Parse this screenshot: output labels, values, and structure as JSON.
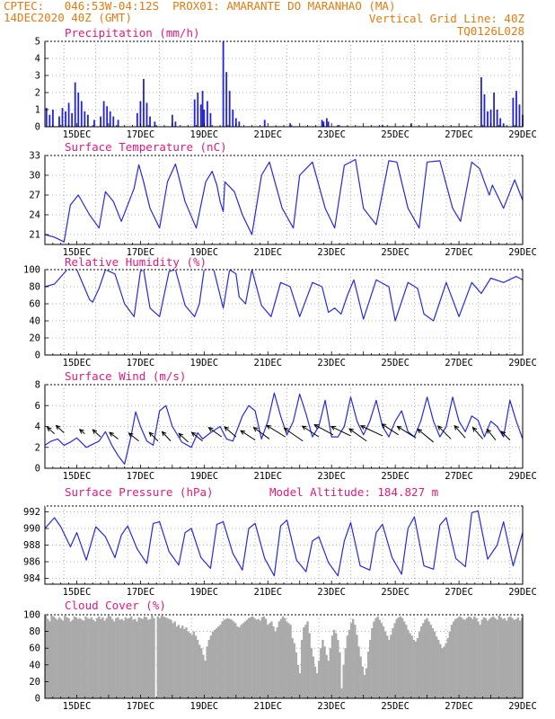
{
  "header": {
    "line1": "CPTEC:   046:53W-04:12S  PROX01: AMARANTE DO MARANHAO (MA)",
    "date": "14DEC2020 40Z (GMT)",
    "grid_note": "Vertical Grid Line: 40Z",
    "code": "TQ0126L028"
  },
  "x_day_labels": [
    "15DEC",
    "17DEC",
    "19DEC",
    "21DEC",
    "23DEC",
    "25DEC",
    "27DEC",
    "29DEC"
  ],
  "chart_data": [
    {
      "type": "bar",
      "title": "Precipitation (mm/h)",
      "ylim": [
        0,
        5
      ],
      "yticks": [
        "0",
        "1",
        "2",
        "3",
        "4",
        "5"
      ],
      "x_day_start": 14.0,
      "x_day_end": 29.0,
      "bars": [
        [
          14.05,
          1.1
        ],
        [
          14.15,
          0.7
        ],
        [
          14.25,
          1.0
        ],
        [
          14.45,
          0.6
        ],
        [
          14.55,
          1.1
        ],
        [
          14.65,
          0.9
        ],
        [
          14.75,
          1.4
        ],
        [
          14.85,
          0.8
        ],
        [
          14.95,
          2.6
        ],
        [
          15.05,
          2.0
        ],
        [
          15.15,
          1.5
        ],
        [
          15.25,
          0.9
        ],
        [
          15.35,
          0.7
        ],
        [
          15.55,
          0.4
        ],
        [
          15.75,
          0.6
        ],
        [
          15.85,
          1.5
        ],
        [
          15.95,
          1.2
        ],
        [
          16.05,
          0.9
        ],
        [
          16.15,
          0.6
        ],
        [
          16.3,
          0.4
        ],
        [
          16.9,
          0.8
        ],
        [
          17.0,
          1.5
        ],
        [
          17.1,
          2.8
        ],
        [
          17.2,
          1.4
        ],
        [
          17.3,
          0.6
        ],
        [
          17.45,
          0.3
        ],
        [
          18.0,
          0.7
        ],
        [
          18.1,
          0.3
        ],
        [
          18.7,
          1.6
        ],
        [
          18.8,
          2.0
        ],
        [
          18.9,
          1.3
        ],
        [
          18.95,
          2.1
        ],
        [
          19.0,
          1.0
        ],
        [
          19.1,
          1.5
        ],
        [
          19.2,
          0.8
        ],
        [
          19.6,
          5.0
        ],
        [
          19.7,
          3.2
        ],
        [
          19.8,
          2.1
        ],
        [
          19.9,
          1.0
        ],
        [
          20.0,
          0.5
        ],
        [
          20.1,
          0.3
        ],
        [
          20.9,
          0.4
        ],
        [
          21.7,
          0.2
        ],
        [
          22.7,
          0.4
        ],
        [
          22.75,
          0.3
        ],
        [
          22.85,
          0.5
        ],
        [
          22.9,
          0.3
        ],
        [
          23.2,
          0.1
        ],
        [
          24.6,
          0.1
        ],
        [
          25.5,
          0.2
        ],
        [
          27.7,
          2.9
        ],
        [
          27.8,
          1.9
        ],
        [
          27.9,
          0.9
        ],
        [
          28.0,
          1.0
        ],
        [
          28.1,
          2.0
        ],
        [
          28.2,
          1.0
        ],
        [
          28.3,
          0.5
        ],
        [
          28.4,
          0.2
        ],
        [
          28.7,
          1.7
        ],
        [
          28.8,
          2.1
        ],
        [
          28.9,
          1.3
        ],
        [
          29.0,
          0.7
        ]
      ]
    },
    {
      "type": "line",
      "title": "Surface Temperature (nC)",
      "ylim": [
        19.5,
        33
      ],
      "yticks": [
        "21",
        "24",
        "27",
        "30",
        "33"
      ],
      "x": [
        14.0,
        14.3,
        14.6,
        14.8,
        15.05,
        15.4,
        15.7,
        15.9,
        16.15,
        16.4,
        16.8,
        16.95,
        17.1,
        17.3,
        17.6,
        17.85,
        18.1,
        18.4,
        18.75,
        19.05,
        19.25,
        19.4,
        19.5,
        19.6,
        19.65,
        19.95,
        20.2,
        20.5,
        20.8,
        21.05,
        21.45,
        21.8,
        22.0,
        22.4,
        22.8,
        23.1,
        23.4,
        23.75,
        24.0,
        24.4,
        24.8,
        25.05,
        25.4,
        25.75,
        26.0,
        26.4,
        26.8,
        27.05,
        27.4,
        27.65,
        27.8,
        27.95,
        28.05,
        28.4,
        28.75,
        29.0
      ],
      "y": [
        21.0,
        20.6,
        19.9,
        25.5,
        27.0,
        24.0,
        22.0,
        27.5,
        26.0,
        23.0,
        28.0,
        31.6,
        29.0,
        25.0,
        22.0,
        29.0,
        31.7,
        26.0,
        22.0,
        29.0,
        30.6,
        28.5,
        26.0,
        24.5,
        29.0,
        27.5,
        24.0,
        21.0,
        30.0,
        32.0,
        25.0,
        22.0,
        30.0,
        32.0,
        25.0,
        22.0,
        31.5,
        32.4,
        25.0,
        22.5,
        32.2,
        32.0,
        25.0,
        22.0,
        32.0,
        32.2,
        25.0,
        23.0,
        32.0,
        31.0,
        29.0,
        27.0,
        28.5,
        25.0,
        29.3,
        26.2
      ]
    },
    {
      "type": "line",
      "title": "Relative Humidity (%)",
      "ylim": [
        0,
        100
      ],
      "yticks": [
        "0",
        "20",
        "40",
        "60",
        "80",
        "100"
      ],
      "x": [
        14.0,
        14.3,
        14.7,
        15.0,
        15.4,
        15.5,
        15.7,
        15.9,
        16.2,
        16.5,
        16.8,
        17.0,
        17.1,
        17.3,
        17.6,
        17.9,
        18.1,
        18.4,
        18.7,
        18.85,
        19.0,
        19.3,
        19.6,
        19.8,
        20.0,
        20.1,
        20.3,
        20.5,
        20.8,
        21.1,
        21.4,
        21.7,
        22.0,
        22.4,
        22.7,
        22.9,
        23.1,
        23.3,
        23.5,
        23.7,
        24.0,
        24.4,
        24.8,
        25.0,
        25.4,
        25.7,
        25.9,
        26.2,
        26.6,
        27.0,
        27.4,
        27.7,
        28.0,
        28.4,
        28.8,
        29.0
      ],
      "y": [
        80,
        83,
        100,
        100,
        65,
        62,
        78,
        100,
        95,
        60,
        45,
        98,
        100,
        55,
        45,
        98,
        100,
        58,
        45,
        60,
        100,
        100,
        55,
        100,
        95,
        68,
        60,
        100,
        58,
        45,
        85,
        80,
        45,
        85,
        80,
        50,
        55,
        48,
        70,
        88,
        42,
        88,
        80,
        40,
        85,
        78,
        48,
        40,
        85,
        45,
        85,
        72,
        90,
        85,
        92,
        88
      ]
    },
    {
      "type": "line",
      "title": "Surface Wind (m/s)",
      "ylim": [
        0,
        8
      ],
      "yticks": [
        "0",
        "2",
        "4",
        "6",
        "8"
      ],
      "x": [
        14.0,
        14.2,
        14.4,
        14.6,
        14.8,
        15.0,
        15.3,
        15.5,
        15.7,
        15.9,
        16.1,
        16.3,
        16.5,
        16.7,
        16.85,
        17.0,
        17.2,
        17.4,
        17.6,
        17.8,
        18.0,
        18.3,
        18.6,
        18.8,
        18.95,
        19.2,
        19.5,
        19.7,
        19.9,
        20.2,
        20.4,
        20.6,
        20.8,
        21.0,
        21.2,
        21.4,
        21.6,
        21.8,
        22.0,
        22.2,
        22.4,
        22.6,
        22.8,
        23.0,
        23.2,
        23.4,
        23.6,
        23.8,
        24.0,
        24.2,
        24.4,
        24.6,
        24.8,
        25.0,
        25.2,
        25.4,
        25.6,
        25.8,
        26.0,
        26.2,
        26.4,
        26.6,
        26.8,
        27.0,
        27.2,
        27.4,
        27.6,
        27.8,
        28.0,
        28.2,
        28.4,
        28.6,
        28.8,
        29.0
      ],
      "y": [
        2.2,
        2.6,
        2.8,
        2.2,
        2.5,
        2.9,
        2.0,
        2.3,
        2.6,
        3.5,
        2.2,
        1.2,
        0.4,
        3.0,
        5.4,
        4.0,
        2.6,
        2.2,
        5.5,
        6.0,
        4.0,
        2.5,
        2.0,
        3.4,
        2.8,
        3.4,
        4.0,
        2.8,
        2.6,
        5.0,
        6.0,
        5.5,
        2.8,
        4.5,
        7.2,
        5.0,
        3.2,
        4.5,
        7.1,
        5.2,
        3.0,
        4.0,
        6.5,
        3.0,
        3.0,
        4.0,
        6.8,
        4.5,
        3.2,
        4.5,
        6.5,
        4.0,
        3.0,
        4.5,
        5.5,
        3.5,
        3.0,
        4.5,
        6.8,
        4.5,
        3.0,
        4.0,
        6.8,
        4.5,
        3.5,
        5.0,
        4.6,
        3.0,
        4.5,
        4.0,
        3.0,
        6.5,
        4.5,
        2.8
      ],
      "vectors": [
        [
          14.3,
          3.3,
          -1.0,
          0.9
        ],
        [
          14.6,
          3.4,
          -1.1,
          1.0
        ],
        [
          15.25,
          3.3,
          -0.7,
          0.6
        ],
        [
          15.75,
          3.0,
          -1.1,
          1.0
        ],
        [
          16.3,
          2.8,
          -1.2,
          0.9
        ],
        [
          16.95,
          2.6,
          -1.4,
          1.1
        ],
        [
          17.55,
          2.6,
          -1.2,
          1.2
        ],
        [
          17.95,
          2.6,
          -1.2,
          1.3
        ],
        [
          18.5,
          2.5,
          -1.3,
          1.2
        ],
        [
          18.95,
          2.6,
          -1.5,
          1.2
        ],
        [
          19.55,
          3.0,
          -1.8,
          1.3
        ],
        [
          20.0,
          3.0,
          -1.6,
          1.4
        ],
        [
          20.6,
          2.7,
          -2.0,
          1.3
        ],
        [
          21.05,
          2.8,
          -2.2,
          1.6
        ],
        [
          21.55,
          3.0,
          -2.6,
          1.6
        ],
        [
          22.1,
          2.6,
          -2.6,
          1.8
        ],
        [
          22.6,
          3.0,
          -2.3,
          1.5
        ],
        [
          23.05,
          3.2,
          -2.6,
          1.4
        ],
        [
          23.6,
          3.1,
          -2.7,
          1.3
        ],
        [
          24.1,
          2.6,
          -2.4,
          1.7
        ],
        [
          24.6,
          3.1,
          -3.0,
          1.4
        ],
        [
          25.1,
          3.2,
          -2.3,
          1.5
        ],
        [
          25.65,
          2.9,
          -2.6,
          1.6
        ],
        [
          26.2,
          2.5,
          -2.2,
          1.8
        ],
        [
          26.75,
          2.8,
          -1.8,
          1.8
        ],
        [
          27.2,
          2.9,
          -1.5,
          1.7
        ],
        [
          27.75,
          2.8,
          -1.4,
          1.6
        ],
        [
          28.15,
          2.7,
          -1.2,
          1.5
        ],
        [
          28.6,
          2.7,
          -1.2,
          1.2
        ]
      ]
    },
    {
      "type": "line",
      "title": "Surface Pressure (hPa)",
      "subtitle": "Model Altitude: 184.827 m",
      "ylim": [
        983.3,
        992.7
      ],
      "yticks": [
        "984",
        "986",
        "988",
        "990",
        "992"
      ],
      "x": [
        14.0,
        14.3,
        14.5,
        14.8,
        15.0,
        15.3,
        15.6,
        15.9,
        16.2,
        16.4,
        16.6,
        16.9,
        17.2,
        17.4,
        17.6,
        17.9,
        18.2,
        18.4,
        18.6,
        18.9,
        19.2,
        19.4,
        19.6,
        19.9,
        20.2,
        20.4,
        20.6,
        20.9,
        21.2,
        21.4,
        21.6,
        21.9,
        22.2,
        22.4,
        22.6,
        22.9,
        23.2,
        23.4,
        23.6,
        23.9,
        24.2,
        24.4,
        24.6,
        24.9,
        25.2,
        25.4,
        25.6,
        25.9,
        26.2,
        26.4,
        26.6,
        26.9,
        27.2,
        27.4,
        27.6,
        27.9,
        28.2,
        28.4,
        28.7,
        29.0
      ],
      "y": [
        990.0,
        991.3,
        990.2,
        987.8,
        989.5,
        986.2,
        990.2,
        989.0,
        986.5,
        989.2,
        990.3,
        987.5,
        985.8,
        990.6,
        990.8,
        987.2,
        985.6,
        989.5,
        990.0,
        986.5,
        985.2,
        990.5,
        990.8,
        987.0,
        985.0,
        990.0,
        990.6,
        986.4,
        984.3,
        990.3,
        991.0,
        986.2,
        984.8,
        988.5,
        989.0,
        985.9,
        984.3,
        988.5,
        990.7,
        985.5,
        985.0,
        989.5,
        990.5,
        986.5,
        984.5,
        990.0,
        991.4,
        985.5,
        985.1,
        990.4,
        991.3,
        986.4,
        985.4,
        991.9,
        992.1,
        986.3,
        988.0,
        990.8,
        985.5,
        989.5
      ]
    },
    {
      "type": "bar",
      "title": "Cloud Cover (%)",
      "ylim": [
        0,
        100
      ],
      "yticks": [
        "0",
        "20",
        "40",
        "60",
        "80",
        "100"
      ],
      "x_day_start": 14.0,
      "x_day_end": 29.0,
      "values": [
        99,
        95,
        92,
        99,
        98,
        96,
        94,
        97,
        95,
        93,
        99,
        97,
        96,
        92,
        94,
        98,
        97,
        95,
        96,
        94,
        93,
        98,
        96,
        95,
        97,
        94,
        92,
        96,
        98,
        95,
        97,
        93,
        96,
        99,
        98,
        95,
        92,
        96,
        97,
        94,
        95,
        93,
        97,
        95,
        96,
        98,
        94,
        95,
        92,
        97,
        96,
        95,
        98,
        97,
        94,
        95,
        99,
        96,
        0,
        98,
        96,
        99,
        98,
        97,
        96,
        95,
        94,
        90,
        92,
        86,
        88,
        84,
        87,
        83,
        85,
        80,
        78,
        76,
        80,
        75,
        70,
        64,
        60,
        52,
        45,
        62,
        70,
        75,
        80,
        82,
        84,
        86,
        88,
        92,
        94,
        95,
        96,
        95,
        94,
        92,
        90,
        86,
        85,
        88,
        90,
        92,
        94,
        96,
        97,
        98,
        96,
        94,
        95,
        93,
        97,
        98,
        95,
        88,
        90,
        92,
        86,
        80,
        85,
        92,
        95,
        98,
        96,
        92,
        90,
        88,
        72,
        66,
        55,
        40,
        30,
        70,
        85,
        88,
        92,
        78,
        60,
        50,
        38,
        30,
        45,
        60,
        70,
        62,
        52,
        45,
        60,
        75,
        82,
        78,
        70,
        55,
        12,
        40,
        60,
        75,
        82,
        90,
        95,
        88,
        76,
        62,
        50,
        38,
        28,
        36,
        56,
        70,
        84,
        92,
        96,
        98,
        94,
        90,
        86,
        80,
        75,
        70,
        76,
        84,
        90,
        95,
        97,
        98,
        96,
        92,
        88,
        82,
        78,
        75,
        70,
        68,
        72,
        80,
        86,
        90,
        94,
        96,
        92,
        88,
        84,
        80,
        74,
        70,
        65,
        60,
        62,
        66,
        72,
        80,
        88,
        92,
        95,
        96,
        98,
        97,
        95,
        94,
        96,
        98,
        97,
        95,
        98,
        96,
        92,
        88,
        94,
        97,
        96,
        93,
        95,
        97,
        98,
        96,
        94,
        99,
        97,
        95,
        96,
        93,
        97,
        98,
        96,
        94,
        95,
        97,
        93,
        96
      ]
    }
  ]
}
